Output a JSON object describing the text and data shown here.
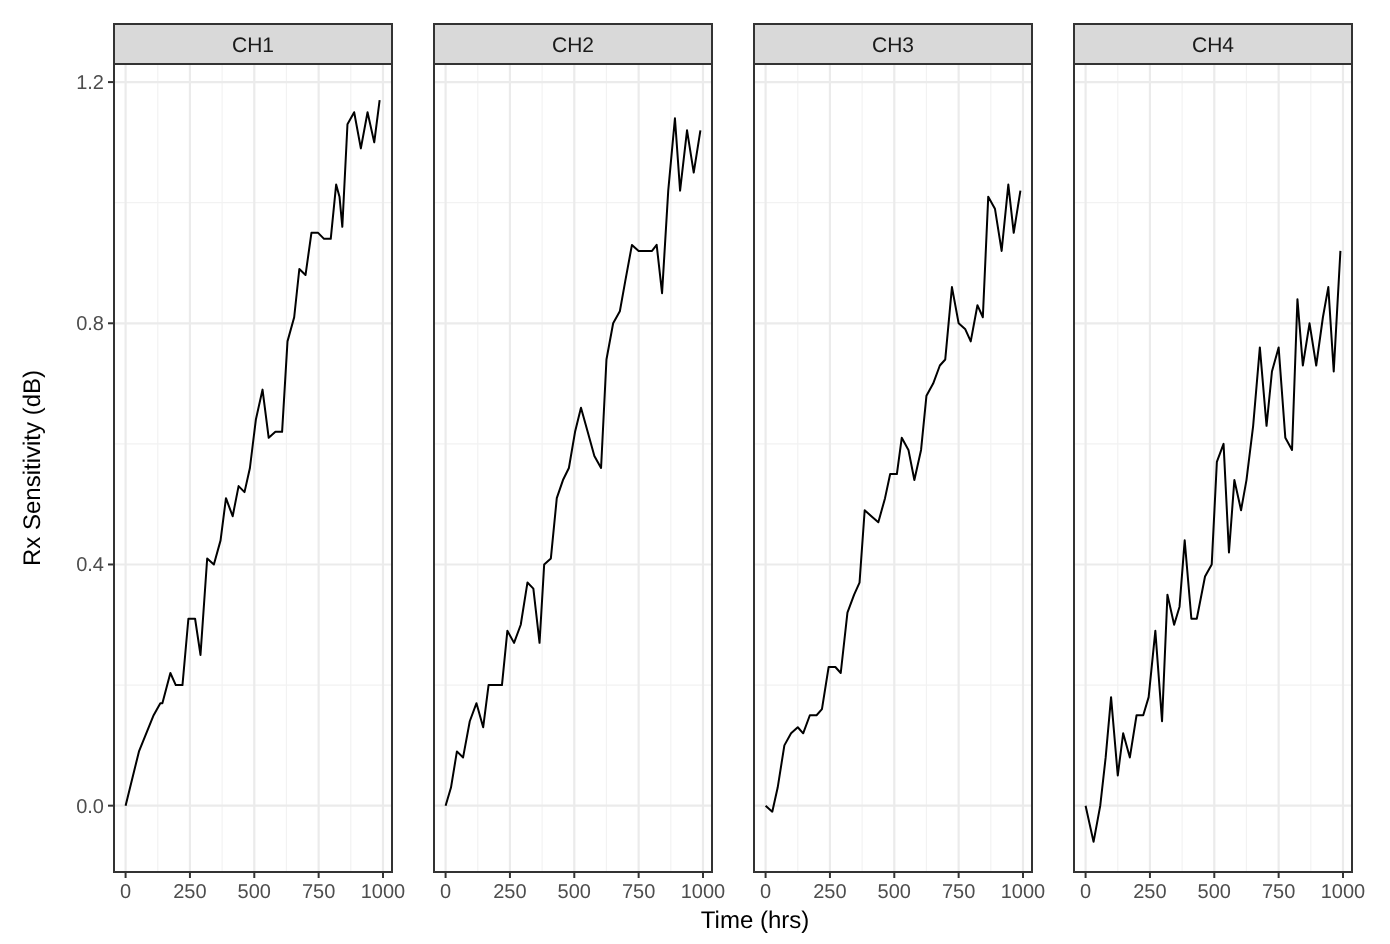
{
  "chart_data": [
    {
      "type": "line",
      "title": "CH1",
      "ylabel": "Rx Sensitivity (dB)",
      "xlim": [
        -45,
        1035
      ],
      "ylim": [
        -0.11,
        1.23
      ],
      "xticks": [
        0,
        250,
        500,
        750,
        1000
      ],
      "yticks": [
        {
          "value": 0,
          "label": "0.0"
        },
        0.4,
        0.8,
        1.2
      ],
      "grid": true,
      "x": [
        0,
        52,
        109,
        135,
        143,
        174,
        195,
        221,
        244,
        270,
        291,
        317,
        343,
        369,
        390,
        416,
        439,
        462,
        483,
        506,
        532,
        556,
        582,
        608,
        629,
        655,
        675,
        699,
        722,
        748,
        771,
        797,
        818,
        831,
        842,
        862,
        888,
        914,
        940,
        966,
        987
      ],
      "series": [
        {
          "color": "#000000",
          "values": [
            0,
            0.09,
            0.15,
            0.17,
            0.17,
            0.22,
            0.2,
            0.2,
            0.31,
            0.31,
            0.25,
            0.41,
            0.4,
            0.44,
            0.51,
            0.48,
            0.53,
            0.52,
            0.56,
            0.64,
            0.69,
            0.61,
            0.62,
            0.62,
            0.77,
            0.81,
            0.89,
            0.88,
            0.95,
            0.95,
            0.94,
            0.94,
            1.03,
            1.01,
            0.96,
            1.13,
            1.15,
            1.09,
            1.15,
            1.1,
            1.17
          ]
        }
      ]
    },
    {
      "type": "line",
      "title": "CH2",
      "xlim": [
        -45,
        1035
      ],
      "ylim": [
        -0.11,
        1.23
      ],
      "xticks": [
        0,
        250,
        500,
        750,
        1000
      ],
      "yticks": [
        0,
        0.4,
        0.8,
        1.2
      ],
      "grid": true,
      "tick_labels": "x",
      "x": [
        0,
        21,
        44,
        68,
        94,
        120,
        146,
        167,
        193,
        219,
        240,
        266,
        292,
        318,
        341,
        365,
        383,
        409,
        432,
        456,
        479,
        503,
        526,
        552,
        578,
        604,
        625,
        651,
        677,
        698,
        724,
        750,
        776,
        802,
        820,
        841,
        865,
        891,
        911,
        938,
        964,
        990
      ],
      "series": [
        {
          "color": "#000000",
          "values": [
            0,
            0.03,
            0.09,
            0.08,
            0.14,
            0.17,
            0.13,
            0.2,
            0.2,
            0.2,
            0.29,
            0.27,
            0.3,
            0.37,
            0.36,
            0.27,
            0.4,
            0.41,
            0.51,
            0.54,
            0.56,
            0.62,
            0.66,
            0.62,
            0.58,
            0.56,
            0.74,
            0.8,
            0.82,
            0.87,
            0.93,
            0.92,
            0.92,
            0.92,
            0.93,
            0.85,
            1.02,
            1.14,
            1.02,
            1.12,
            1.05,
            1.12
          ]
        }
      ]
    },
    {
      "type": "line",
      "title": "CH3",
      "xlabel": "Time (hrs)",
      "xlim": [
        -45,
        1035
      ],
      "ylim": [
        -0.11,
        1.23
      ],
      "xticks": [
        0,
        250,
        500,
        750,
        1000
      ],
      "yticks": [
        0,
        0.4,
        0.8,
        1.2
      ],
      "grid": true,
      "tick_labels": "x",
      "x": [
        0,
        26,
        47,
        73,
        99,
        125,
        146,
        172,
        198,
        219,
        245,
        271,
        292,
        318,
        344,
        365,
        385,
        411,
        438,
        464,
        484,
        510,
        529,
        555,
        578,
        604,
        625,
        651,
        677,
        698,
        724,
        750,
        776,
        797,
        823,
        844,
        865,
        891,
        917,
        943,
        964,
        990
      ],
      "series": [
        {
          "color": "#000000",
          "values": [
            0,
            -0.01,
            0.03,
            0.1,
            0.12,
            0.13,
            0.12,
            0.15,
            0.15,
            0.16,
            0.23,
            0.23,
            0.22,
            0.32,
            0.35,
            0.37,
            0.49,
            0.48,
            0.47,
            0.51,
            0.55,
            0.55,
            0.61,
            0.59,
            0.54,
            0.59,
            0.68,
            0.7,
            0.73,
            0.74,
            0.86,
            0.8,
            0.79,
            0.77,
            0.83,
            0.81,
            1.01,
            0.99,
            0.92,
            1.03,
            0.95,
            1.02
          ]
        }
      ]
    },
    {
      "type": "line",
      "title": "CH4",
      "xlim": [
        -45,
        1035
      ],
      "ylim": [
        -0.11,
        1.23
      ],
      "xticks": [
        0,
        250,
        500,
        750,
        1000
      ],
      "yticks": [
        0,
        0.4,
        0.8,
        1.2
      ],
      "grid": true,
      "tick_labels": "x",
      "x": [
        0,
        31,
        57,
        78,
        99,
        125,
        146,
        172,
        198,
        224,
        245,
        271,
        297,
        318,
        344,
        365,
        385,
        411,
        432,
        464,
        490,
        510,
        536,
        557,
        578,
        604,
        625,
        651,
        677,
        703,
        724,
        750,
        776,
        802,
        823,
        844,
        870,
        896,
        922,
        943,
        964,
        990
      ],
      "series": [
        {
          "color": "#000000",
          "values": [
            0,
            -0.06,
            0,
            0.08,
            0.18,
            0.05,
            0.12,
            0.08,
            0.15,
            0.15,
            0.18,
            0.29,
            0.14,
            0.35,
            0.3,
            0.33,
            0.44,
            0.31,
            0.31,
            0.38,
            0.4,
            0.57,
            0.6,
            0.42,
            0.54,
            0.49,
            0.54,
            0.63,
            0.76,
            0.63,
            0.72,
            0.76,
            0.61,
            0.59,
            0.84,
            0.73,
            0.8,
            0.73,
            0.81,
            0.86,
            0.72,
            0.92
          ]
        }
      ]
    }
  ]
}
